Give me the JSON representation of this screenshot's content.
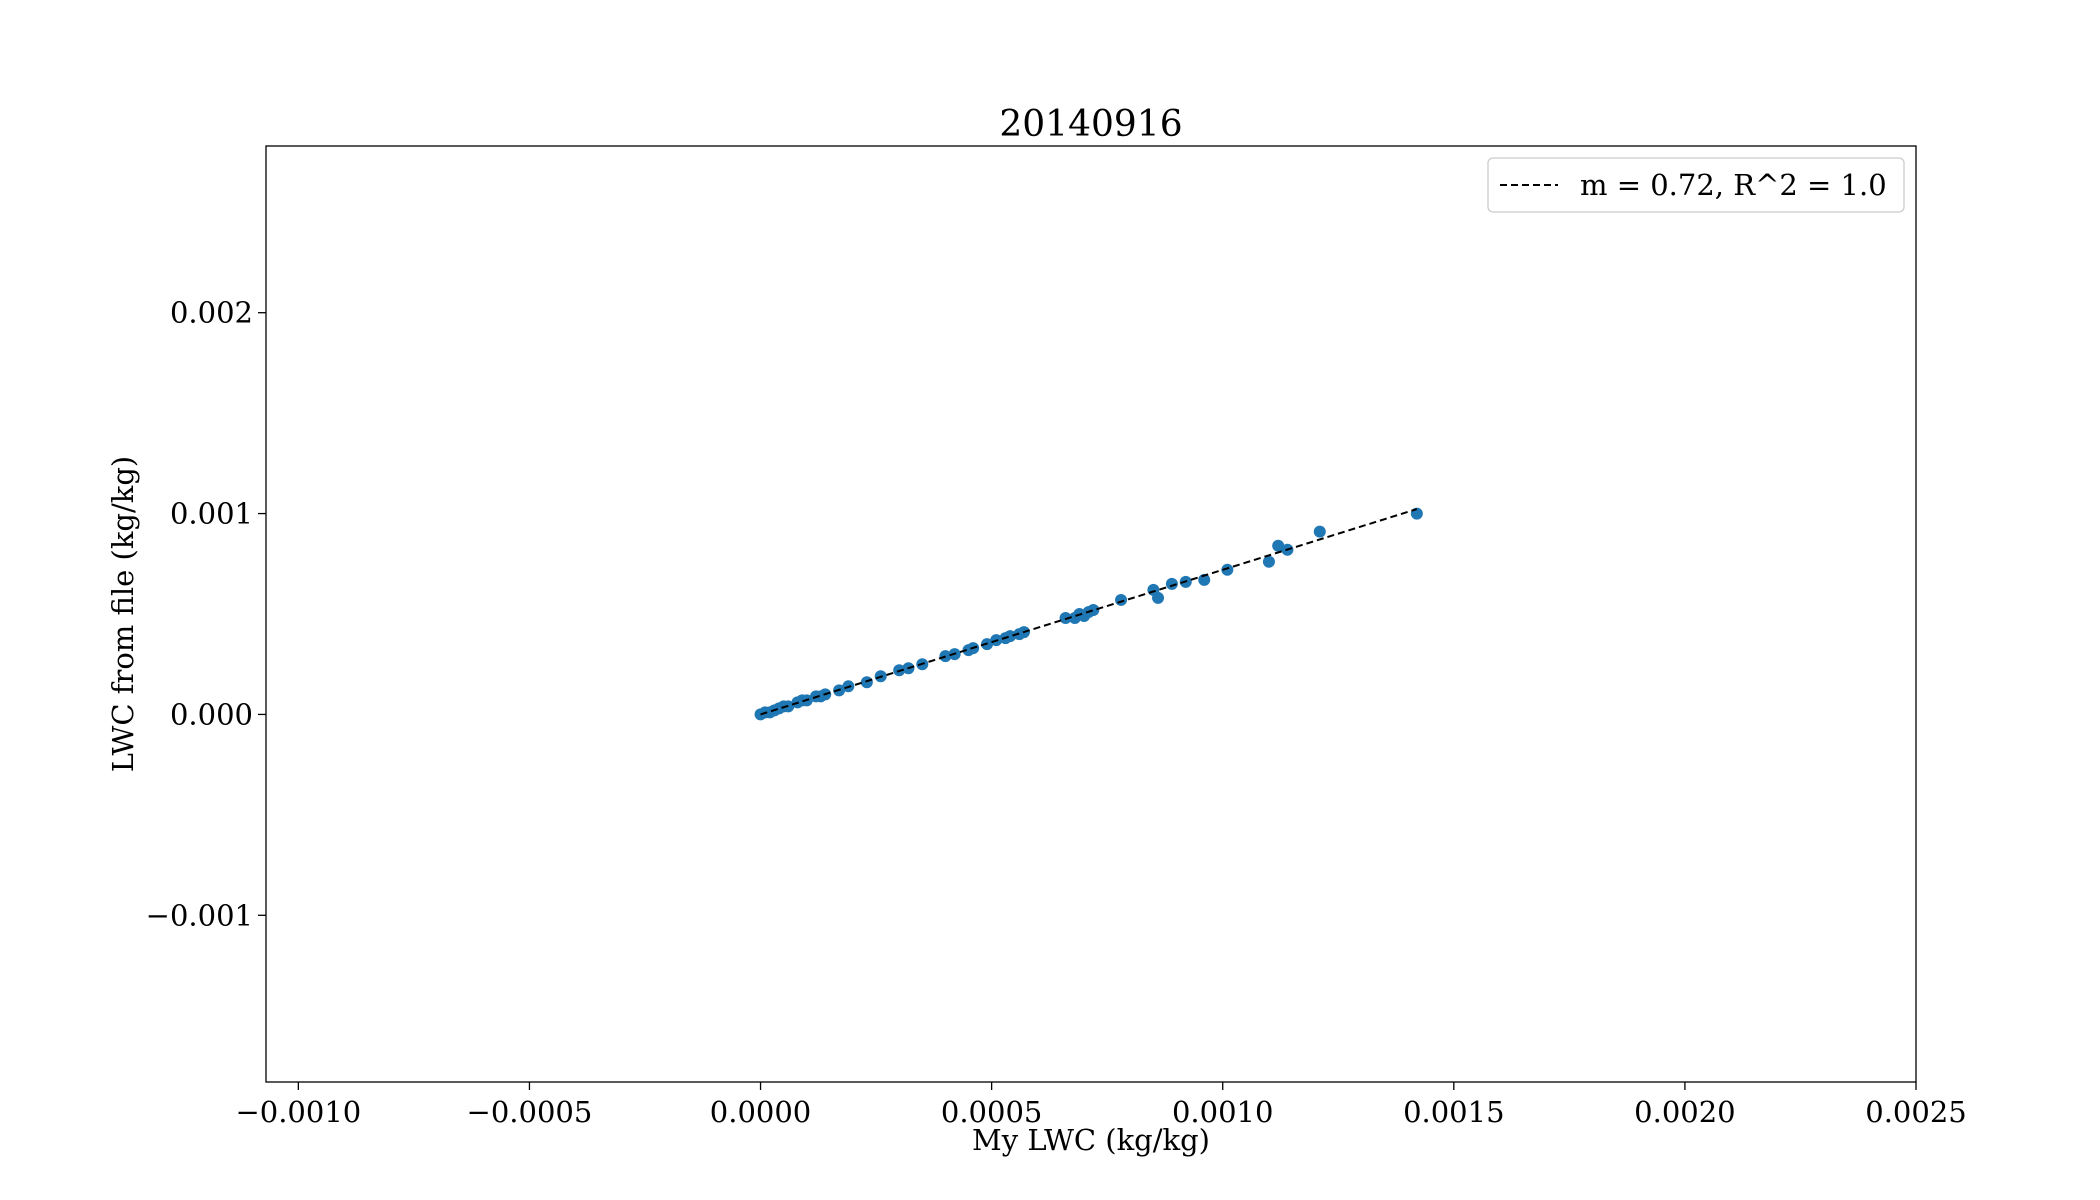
{
  "chart_data": {
    "type": "scatter",
    "title": "20140916",
    "xlabel": "My LWC (kg/kg)",
    "ylabel": "LWC from file (kg/kg)",
    "xlim": [
      -0.00107,
      0.0025
    ],
    "ylim": [
      -0.00183,
      0.00283
    ],
    "x_ticks": [
      -0.001,
      -0.0005,
      0.0,
      0.0005,
      0.001,
      0.0015,
      0.002,
      0.0025
    ],
    "x_tick_labels": [
      "−0.0010",
      "−0.0005",
      "0.0000",
      "0.0005",
      "0.0010",
      "0.0015",
      "0.0020",
      "0.0025"
    ],
    "y_ticks": [
      -0.001,
      0.0,
      0.001,
      0.002
    ],
    "y_tick_labels": [
      "−0.001",
      "0.000",
      "0.001",
      "0.002"
    ],
    "grid": false,
    "legend_position": "top-right",
    "point_color": "#1f77b4",
    "fit_line": {
      "label": "m = 0.72, R^2 = 1.0",
      "slope": 0.72,
      "x_range": [
        0.0,
        0.00142
      ],
      "color": "#000000",
      "style": "dashed"
    },
    "series": [
      {
        "x": [
          0.0,
          1e-05,
          2e-05,
          3e-05,
          4e-05,
          5e-05,
          6e-05,
          8e-05,
          9e-05,
          0.0001,
          0.00012,
          0.00013,
          0.00014,
          0.00017,
          0.00019,
          0.00023,
          0.00026,
          0.0003,
          0.00032,
          0.00035,
          0.0004,
          0.00042,
          0.00045,
          0.00046,
          0.00049,
          0.00051,
          0.00053,
          0.00054,
          0.00056,
          0.00057,
          0.00066,
          0.00068,
          0.00069,
          0.0007,
          0.00071,
          0.00072,
          0.00078,
          0.00085,
          0.00086,
          0.00089,
          0.00092,
          0.00096,
          0.00101,
          0.0011,
          0.00112,
          0.00114,
          0.00121,
          0.00142
        ],
        "y": [
          0.0,
          1e-05,
          1e-05,
          2e-05,
          3e-05,
          4e-05,
          4e-05,
          6e-05,
          7e-05,
          7e-05,
          9e-05,
          9e-05,
          0.0001,
          0.00012,
          0.00014,
          0.00016,
          0.00019,
          0.00022,
          0.00023,
          0.00025,
          0.00029,
          0.0003,
          0.00032,
          0.00033,
          0.00035,
          0.00037,
          0.00038,
          0.00039,
          0.0004,
          0.00041,
          0.00048,
          0.00048,
          0.0005,
          0.00049,
          0.00051,
          0.00052,
          0.00057,
          0.00062,
          0.00058,
          0.00065,
          0.00066,
          0.00067,
          0.00072,
          0.00076,
          0.00084,
          0.00082,
          0.00091,
          0.001
        ]
      }
    ]
  }
}
